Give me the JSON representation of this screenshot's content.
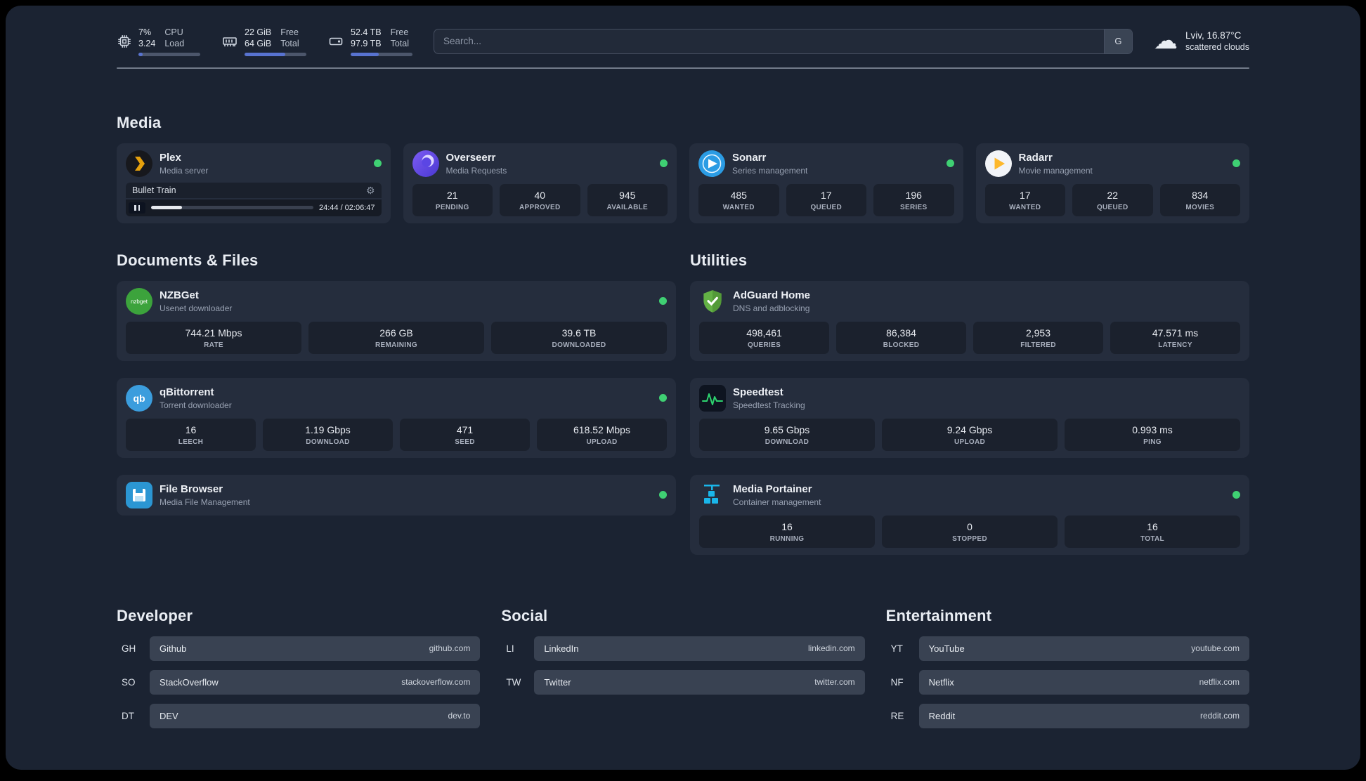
{
  "icons": {
    "gear": "⚙",
    "cloud": "☁"
  },
  "colors": {
    "status_online": "#3fd073",
    "accent_bar": "#5873d0"
  },
  "topbar": {
    "cpu": {
      "value_top": "7%",
      "value_bottom": "3.24",
      "label_top": "CPU",
      "label_bottom": "Load",
      "percent": 7
    },
    "memory": {
      "value_top": "22 GiB",
      "value_bottom": "64 GiB",
      "label_top": "Free",
      "label_bottom": "Total",
      "percent": 66
    },
    "disk": {
      "value_top": "52.4 TB",
      "value_bottom": "97.9 TB",
      "label_top": "Free",
      "label_bottom": "Total",
      "percent": 46
    },
    "search": {
      "placeholder": "Search...",
      "engine_label": "G"
    },
    "weather": {
      "location": "Lviv, 16.87°C",
      "condition": "scattered clouds"
    }
  },
  "sections": {
    "media": "Media",
    "documents": "Documents & Files",
    "utilities": "Utilities"
  },
  "services": {
    "plex": {
      "name": "Plex",
      "desc": "Media server",
      "player": {
        "title": "Bullet Train",
        "time": "24:44 / 02:06:47",
        "progress": 19
      }
    },
    "overseerr": {
      "name": "Overseerr",
      "desc": "Media Requests",
      "stats": [
        {
          "value": "21",
          "label": "PENDING"
        },
        {
          "value": "40",
          "label": "APPROVED"
        },
        {
          "value": "945",
          "label": "AVAILABLE"
        }
      ]
    },
    "sonarr": {
      "name": "Sonarr",
      "desc": "Series management",
      "stats": [
        {
          "value": "485",
          "label": "WANTED"
        },
        {
          "value": "17",
          "label": "QUEUED"
        },
        {
          "value": "196",
          "label": "SERIES"
        }
      ]
    },
    "radarr": {
      "name": "Radarr",
      "desc": "Movie management",
      "stats": [
        {
          "value": "17",
          "label": "WANTED"
        },
        {
          "value": "22",
          "label": "QUEUED"
        },
        {
          "value": "834",
          "label": "MOVIES"
        }
      ]
    },
    "nzbget": {
      "name": "NZBGet",
      "desc": "Usenet downloader",
      "icon_text": "nzbget",
      "stats": [
        {
          "value": "744.21 Mbps",
          "label": "RATE"
        },
        {
          "value": "266 GB",
          "label": "REMAINING"
        },
        {
          "value": "39.6 TB",
          "label": "DOWNLOADED"
        }
      ]
    },
    "qbittorrent": {
      "name": "qBittorrent",
      "desc": "Torrent downloader",
      "icon_text": "qb",
      "stats": [
        {
          "value": "16",
          "label": "LEECH"
        },
        {
          "value": "1.19 Gbps",
          "label": "DOWNLOAD"
        },
        {
          "value": "471",
          "label": "SEED"
        },
        {
          "value": "618.52 Mbps",
          "label": "UPLOAD"
        }
      ]
    },
    "filebrowser": {
      "name": "File Browser",
      "desc": "Media File Management"
    },
    "adguard": {
      "name": "AdGuard Home",
      "desc": "DNS and adblocking",
      "stats": [
        {
          "value": "498,461",
          "label": "QUERIES"
        },
        {
          "value": "86,384",
          "label": "BLOCKED"
        },
        {
          "value": "2,953",
          "label": "FILTERED"
        },
        {
          "value": "47.571 ms",
          "label": "LATENCY"
        }
      ]
    },
    "speedtest": {
      "name": "Speedtest",
      "desc": "Speedtest Tracking",
      "stats": [
        {
          "value": "9.65 Gbps",
          "label": "DOWNLOAD"
        },
        {
          "value": "9.24 Gbps",
          "label": "UPLOAD"
        },
        {
          "value": "0.993 ms",
          "label": "PING"
        }
      ]
    },
    "portainer": {
      "name": "Media Portainer",
      "desc": "Container management",
      "stats": [
        {
          "value": "16",
          "label": "RUNNING"
        },
        {
          "value": "0",
          "label": "STOPPED"
        },
        {
          "value": "16",
          "label": "TOTAL"
        }
      ]
    }
  },
  "bookmarks": {
    "developer": {
      "title": "Developer",
      "items": [
        {
          "abbr": "GH",
          "name": "Github",
          "domain": "github.com"
        },
        {
          "abbr": "SO",
          "name": "StackOverflow",
          "domain": "stackoverflow.com"
        },
        {
          "abbr": "DT",
          "name": "DEV",
          "domain": "dev.to"
        }
      ]
    },
    "social": {
      "title": "Social",
      "items": [
        {
          "abbr": "LI",
          "name": "LinkedIn",
          "domain": "linkedin.com"
        },
        {
          "abbr": "TW",
          "name": "Twitter",
          "domain": "twitter.com"
        }
      ]
    },
    "entertainment": {
      "title": "Entertainment",
      "items": [
        {
          "abbr": "YT",
          "name": "YouTube",
          "domain": "youtube.com"
        },
        {
          "abbr": "NF",
          "name": "Netflix",
          "domain": "netflix.com"
        },
        {
          "abbr": "RE",
          "name": "Reddit",
          "domain": "reddit.com"
        }
      ]
    }
  }
}
